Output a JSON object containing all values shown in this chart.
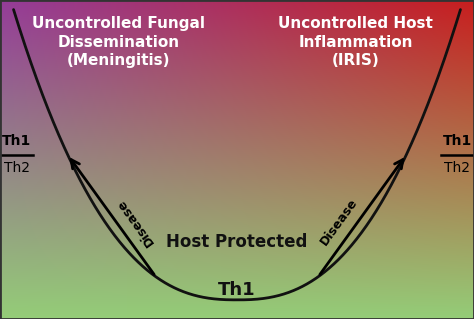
{
  "left_title": "Uncontrolled Fungal\nDissemination\n(Meningitis)",
  "right_title": "Uncontrolled Host\nInflammation\n(IRIS)",
  "center_label": "Host Protected",
  "bottom_label": "Th1",
  "left_ratio_top": "Th1",
  "left_ratio_bottom": "Th2",
  "right_ratio_top": "Th1",
  "right_ratio_bottom": "Th2",
  "disease_label": "Disease",
  "color_purple": [
    148,
    60,
    153
  ],
  "color_red": [
    200,
    30,
    30
  ],
  "color_green": [
    148,
    205,
    120
  ],
  "color_pink": [
    220,
    160,
    170
  ],
  "color_white": [
    255,
    255,
    255
  ],
  "curve_color": "#111111",
  "text_color_top": "#FFFFFF",
  "text_color_center": "#111111",
  "xlim": [
    -3.5,
    3.5
  ],
  "ylim": [
    0,
    1
  ]
}
